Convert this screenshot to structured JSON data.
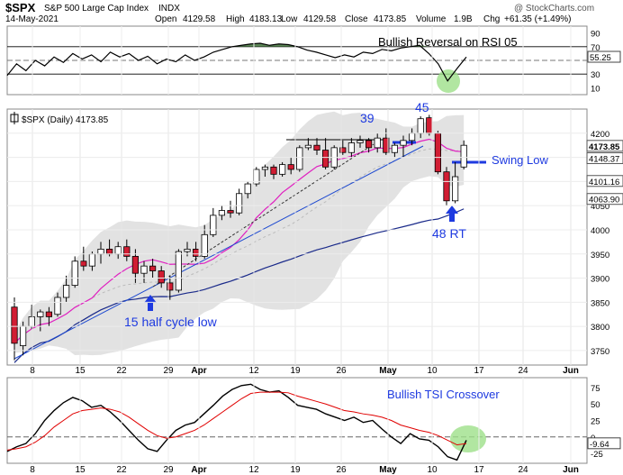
{
  "header": {
    "symbol": "$SPX",
    "name": "S&P 500 Large Cap Index",
    "exchange": "INDX",
    "date": "14-May-2021",
    "open_label": "Open",
    "open": "4129.58",
    "high_label": "High",
    "high": "4183.13",
    "low_label": "Low",
    "low": "4129.58",
    "close_label": "Close",
    "close": "4173.85",
    "volume_label": "Volume",
    "volume": "1.9B",
    "chg_label": "Chg",
    "chg": "+61.35 (+1.49%)",
    "watermark": "@ StockCharts.com"
  },
  "annotations": {
    "rsi_title": "Bullish Reversal on RSI 05",
    "tsi_title": "Bullish TSI Crossover",
    "label_39": "39",
    "label_45": "45",
    "swing_low": "Swing Low",
    "rt48": "48 RT",
    "half_cycle": "15 half cycle low"
  },
  "chart_data": [
    {
      "type": "line",
      "panel": "RSI",
      "ylim": [
        0,
        100
      ],
      "ytick_labels": [
        "90",
        "70",
        "30",
        "10"
      ],
      "reference_lines": [
        70,
        30
      ],
      "last_value_label": "55.25",
      "values": [
        28,
        45,
        35,
        50,
        42,
        55,
        47,
        60,
        52,
        58,
        48,
        62,
        55,
        60,
        50,
        56,
        45,
        52,
        48,
        58,
        50,
        55,
        62,
        66,
        70,
        72,
        74,
        75,
        72,
        74,
        73,
        70,
        65,
        62,
        58,
        54,
        58,
        55,
        62,
        60,
        66,
        64,
        68,
        70,
        72,
        60,
        45,
        20,
        38,
        55
      ]
    },
    {
      "type": "candlestick",
      "panel": "Price",
      "legend": "$SPX (Daily) 4173.85",
      "ylim": [
        3720,
        4250
      ],
      "ytick_labels": [
        "4200",
        "4150",
        "4100",
        "4050",
        "4000",
        "3950",
        "3900",
        "3850",
        "3800",
        "3750"
      ],
      "price_labels": [
        "4173.85",
        "4148.37",
        "4101.16",
        "4063.90"
      ],
      "x_tick_labels": [
        "8",
        "15",
        "22",
        "29",
        "Apr",
        "12",
        "19",
        "26",
        "May",
        "10",
        "17",
        "24",
        "Jun"
      ],
      "candles": [
        [
          3840,
          3860,
          3730,
          3765
        ],
        [
          3760,
          3810,
          3740,
          3800
        ],
        [
          3800,
          3845,
          3795,
          3820
        ],
        [
          3820,
          3835,
          3790,
          3830
        ],
        [
          3830,
          3840,
          3800,
          3820
        ],
        [
          3825,
          3870,
          3820,
          3860
        ],
        [
          3860,
          3905,
          3850,
          3885
        ],
        [
          3885,
          3945,
          3880,
          3935
        ],
        [
          3935,
          3965,
          3915,
          3925
        ],
        [
          3925,
          3955,
          3915,
          3950
        ],
        [
          3950,
          3975,
          3930,
          3960
        ],
        [
          3960,
          3980,
          3945,
          3950
        ],
        [
          3950,
          3975,
          3940,
          3965
        ],
        [
          3965,
          3980,
          3935,
          3945
        ],
        [
          3945,
          3960,
          3890,
          3910
        ],
        [
          3910,
          3935,
          3890,
          3925
        ],
        [
          3925,
          3940,
          3900,
          3915
        ],
        [
          3915,
          3925,
          3880,
          3890
        ],
        [
          3890,
          3905,
          3855,
          3875
        ],
        [
          3875,
          3960,
          3870,
          3955
        ],
        [
          3955,
          3975,
          3945,
          3960
        ],
        [
          3960,
          3975,
          3935,
          3945
        ],
        [
          3945,
          4010,
          3940,
          3990
        ],
        [
          3990,
          4045,
          3985,
          4030
        ],
        [
          4030,
          4050,
          4020,
          4040
        ],
        [
          4040,
          4060,
          4025,
          4035
        ],
        [
          4035,
          4085,
          4030,
          4075
        ],
        [
          4075,
          4100,
          4065,
          4095
        ],
        [
          4095,
          4130,
          4090,
          4125
        ],
        [
          4125,
          4135,
          4110,
          4130
        ],
        [
          4130,
          4135,
          4105,
          4115
        ],
        [
          4115,
          4140,
          4110,
          4135
        ],
        [
          4135,
          4150,
          4115,
          4125
        ],
        [
          4125,
          4175,
          4120,
          4170
        ],
        [
          4170,
          4190,
          4165,
          4175
        ],
        [
          4175,
          4190,
          4155,
          4165
        ],
        [
          4165,
          4190,
          4125,
          4130
        ],
        [
          4130,
          4175,
          4125,
          4170
        ],
        [
          4170,
          4185,
          4155,
          4160
        ],
        [
          4160,
          4190,
          4150,
          4180
        ],
        [
          4180,
          4195,
          4170,
          4185
        ],
        [
          4185,
          4190,
          4160,
          4170
        ],
        [
          4170,
          4200,
          4160,
          4190
        ],
        [
          4190,
          4210,
          4155,
          4160
        ],
        [
          4160,
          4180,
          4150,
          4175
        ],
        [
          4175,
          4195,
          4150,
          4185
        ],
        [
          4185,
          4210,
          4175,
          4200
        ],
        [
          4200,
          4235,
          4190,
          4230
        ],
        [
          4232,
          4238,
          4195,
          4200
        ],
        [
          4200,
          4205,
          4115,
          4120
        ],
        [
          4120,
          4130,
          4050,
          4060
        ],
        [
          4060,
          4140,
          4055,
          4110
        ],
        [
          4130,
          4185,
          4125,
          4175
        ]
      ]
    },
    {
      "type": "line",
      "panel": "TSI",
      "ylim": [
        -40,
        90
      ],
      "ytick_labels": [
        "75",
        "50",
        "25",
        "0",
        "-25"
      ],
      "last_value_label": "-9.64",
      "series": [
        {
          "name": "",
          "color": "#000000",
          "values": [
            -22,
            -15,
            -10,
            5,
            25,
            40,
            52,
            60,
            55,
            45,
            48,
            38,
            25,
            10,
            -5,
            -18,
            -22,
            -5,
            10,
            18,
            22,
            35,
            48,
            62,
            72,
            78,
            80,
            72,
            68,
            70,
            60,
            48,
            45,
            42,
            35,
            30,
            25,
            30,
            22,
            25,
            12,
            0,
            -10,
            5,
            -3,
            -5,
            -15,
            -30,
            -35,
            -5
          ]
        },
        {
          "name": "",
          "color": "#e00000",
          "values": [
            -20,
            -18,
            -15,
            -8,
            2,
            15,
            25,
            35,
            40,
            42,
            44,
            42,
            38,
            30,
            20,
            10,
            2,
            -2,
            0,
            5,
            10,
            18,
            28,
            38,
            48,
            58,
            66,
            68,
            68,
            68,
            67,
            62,
            58,
            54,
            50,
            45,
            40,
            38,
            35,
            33,
            30,
            25,
            18,
            14,
            10,
            7,
            2,
            -5,
            -12,
            -10
          ]
        }
      ]
    }
  ],
  "colors": {
    "up": "#ffffff",
    "down": "#d11d33",
    "wick": "#000000",
    "rsi_fill_up": "#4a7a45",
    "ma_fast": "#e020c0",
    "ma_slow": "#1a2a8a",
    "annot_blue": "#1e3ae0",
    "highlight_green": "#9ee08a",
    "band": "#d8d8d8"
  }
}
